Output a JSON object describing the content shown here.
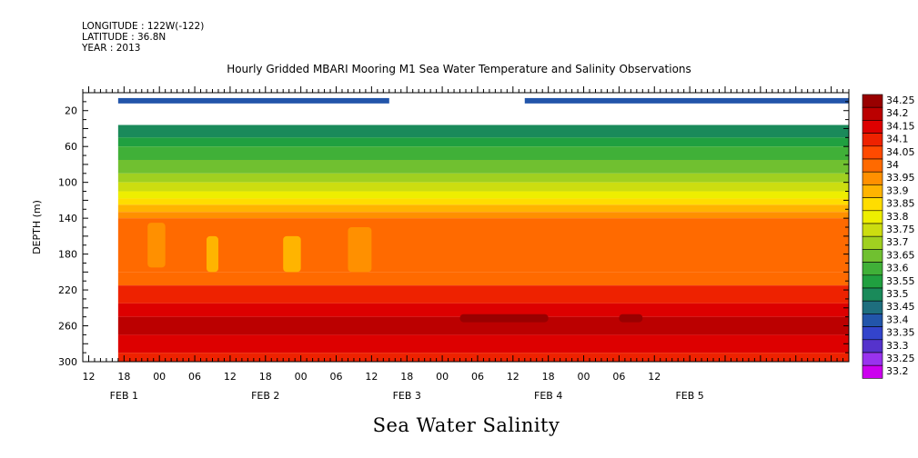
{
  "header": {
    "longitude": "LONGITUDE : 122W(-122)",
    "latitude": "LATITUDE : 36.8N",
    "year": "YEAR : 2013",
    "title": "Hourly Gridded MBARI Mooring M1 Sea Water Temperature and Salinity Observations"
  },
  "footer": {
    "title": "Sea Water Salinity"
  },
  "colors": {
    "palette": [
      "#cc00ee",
      "#9933ee",
      "#5533cc",
      "#3344cc",
      "#2255aa",
      "#1e6e7e",
      "#1a8a5a",
      "#20a040",
      "#40b038",
      "#70c030",
      "#a0d020",
      "#ccdd10",
      "#eeee00",
      "#ffdd00",
      "#ffb400",
      "#ff9000",
      "#ff6a00",
      "#ff4a00",
      "#ee2200",
      "#dd0000",
      "#bb0000",
      "#990000"
    ],
    "no_data": "#ffffff"
  },
  "chart_data": {
    "type": "heatmap",
    "title": "Hourly Gridded MBARI Mooring M1 Sea Water Temperature and Salinity Observations",
    "variable": "Sea Water Salinity",
    "ylabel": "DEPTH (m)",
    "yaxis_inverted": true,
    "ylim": [
      300,
      0
    ],
    "yticks": [
      20,
      60,
      100,
      140,
      180,
      220,
      260,
      300
    ],
    "xlim_hours": [
      0,
      130
    ],
    "xtick_labels": [
      "12",
      "18",
      "00",
      "06",
      "12",
      "18",
      "00",
      "06",
      "12",
      "18",
      "00",
      "06",
      "12",
      "18",
      "00",
      "06",
      "12"
    ],
    "xdate_labels": [
      "FEB 1",
      "FEB 2",
      "FEB 3",
      "FEB 4",
      "FEB 5"
    ],
    "legend_levels": [
      "34.25",
      "34.2",
      "34.15",
      "34.1",
      "34.05",
      "34",
      "33.95",
      "33.9",
      "33.85",
      "33.8",
      "33.75",
      "33.7",
      "33.65",
      "33.6",
      "33.55",
      "33.5",
      "33.45",
      "33.4",
      "33.35",
      "33.3",
      "33.25",
      "33.2"
    ],
    "legend_placement": "right",
    "data_start": "FEB 1 17h",
    "surface_depth_m": 10,
    "surface_value": 33.4,
    "surface_missing_ranges": [
      [
        "FEB 3 15h",
        "FEB 4 14h"
      ]
    ],
    "gap_depths_m": [
      12,
      36
    ],
    "profile": [
      {
        "depth": 36,
        "value": 33.5
      },
      {
        "depth": 50,
        "value": 33.55
      },
      {
        "depth": 60,
        "value": 33.6
      },
      {
        "depth": 75,
        "value": 33.65
      },
      {
        "depth": 90,
        "value": 33.7
      },
      {
        "depth": 100,
        "value": 33.75
      },
      {
        "depth": 110,
        "value": 33.8
      },
      {
        "depth": 118,
        "value": 33.85
      },
      {
        "depth": 125,
        "value": 33.9
      },
      {
        "depth": 133,
        "value": 33.95
      },
      {
        "depth": 140,
        "value": 34.0
      },
      {
        "depth": 200,
        "value": 34.0
      },
      {
        "depth": 215,
        "value": 34.1
      },
      {
        "depth": 235,
        "value": 34.15
      },
      {
        "depth": 250,
        "value": 34.2
      },
      {
        "depth": 270,
        "value": 34.15
      },
      {
        "depth": 290,
        "value": 34.1
      }
    ],
    "features": [
      {
        "description": "lower salinity plume",
        "time_range": [
          "FEB 1 22h",
          "FEB 2 01h"
        ],
        "depth_range": [
          145,
          195
        ],
        "value": 33.95
      },
      {
        "description": "lower salinity plume",
        "time_range": [
          "FEB 2 08h",
          "FEB 2 10h"
        ],
        "depth_range": [
          160,
          200
        ],
        "value": 33.9
      },
      {
        "description": "lower salinity plume",
        "time_range": [
          "FEB 2 21h",
          "FEB 3 00h"
        ],
        "depth_range": [
          160,
          200
        ],
        "value": 33.9
      },
      {
        "description": "lower salinity plume",
        "time_range": [
          "FEB 3 08h",
          "FEB 3 12h"
        ],
        "depth_range": [
          150,
          200
        ],
        "value": 33.95
      },
      {
        "description": "high salinity core",
        "time_range": [
          "FEB 4 03h",
          "FEB 4 18h"
        ],
        "depth_range": [
          247,
          256
        ],
        "value": 34.25
      },
      {
        "description": "high salinity core",
        "time_range": [
          "FEB 5 06h",
          "FEB 5 10h"
        ],
        "depth_range": [
          247,
          256
        ],
        "value": 34.25
      }
    ]
  }
}
